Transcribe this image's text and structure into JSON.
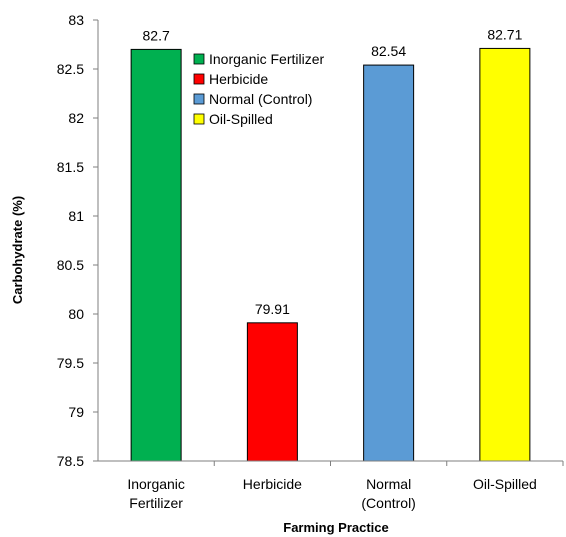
{
  "chart_data": {
    "type": "bar",
    "title": "",
    "xlabel": "Farming Practice",
    "ylabel": "Carbohydrate (%)",
    "ylim": [
      78.5,
      83
    ],
    "yticks": [
      78.5,
      79,
      79.5,
      80,
      80.5,
      81,
      81.5,
      82,
      82.5,
      83
    ],
    "grid": false,
    "legend_position": "top-center",
    "categories": [
      [
        "Inorganic",
        "Fertilizer"
      ],
      [
        "Herbicide"
      ],
      [
        "Normal",
        "(Control)"
      ],
      [
        "Oil-Spilled"
      ]
    ],
    "values": [
      82.7,
      79.91,
      82.54,
      82.71
    ],
    "data_labels": [
      "82.7",
      "79.91",
      "82.54",
      "82.71"
    ],
    "colors": [
      "#00b050",
      "#ff0000",
      "#5b9bd5",
      "#ffff00"
    ],
    "legend": [
      "Inorganic Fertilizer",
      "Herbicide",
      "Normal (Control)",
      "Oil-Spilled"
    ]
  }
}
